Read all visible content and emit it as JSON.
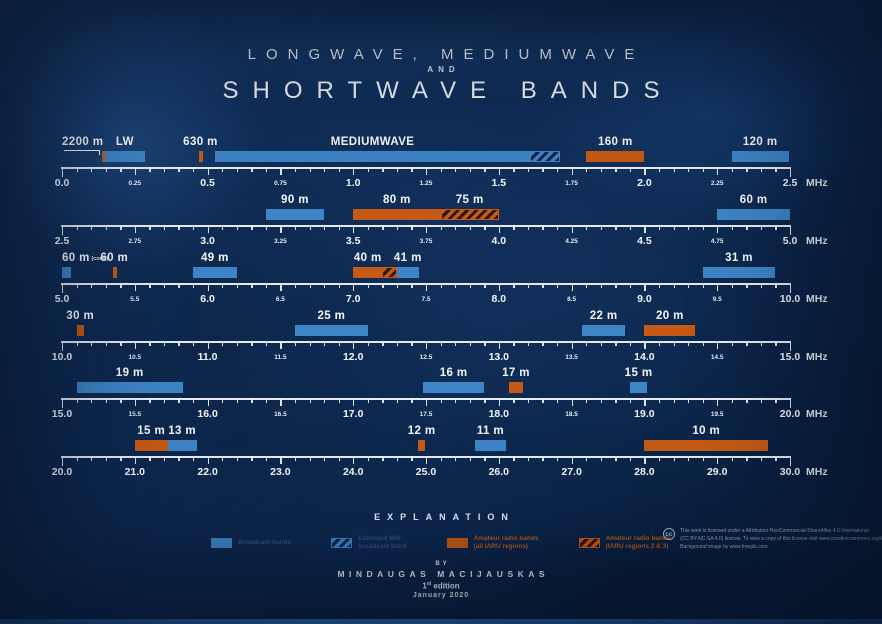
{
  "title": {
    "line1": "LONGWAVE, MEDIUMWAVE",
    "line2": "AND",
    "line3": "SHORTWAVE BANDS"
  },
  "unit_label": "MHz",
  "colors": {
    "broadcast_blue": "#3d85c6",
    "amateur_orange": "#c45a15",
    "background_navy": "#0d2950",
    "ruler_white": "#f0f6fc"
  },
  "chart_data": {
    "type": "bar",
    "subtype": "horizontal-frequency-band-ruler",
    "unit": "MHz",
    "rows": [
      {
        "range": [
          0,
          2.5
        ],
        "minor_step": 0.05,
        "big_ticks": [
          [
            0,
            "0.0"
          ],
          [
            0.5,
            "0.5"
          ],
          [
            1,
            "1.0"
          ],
          [
            1.5,
            "1.5"
          ],
          [
            2,
            "2.0"
          ],
          [
            2.5,
            "2.5"
          ]
        ],
        "small_ticks": [
          [
            0.25,
            "0.25"
          ],
          [
            0.75,
            "0.75"
          ],
          [
            1.25,
            "1.25"
          ],
          [
            1.75,
            "1.75"
          ],
          [
            2.25,
            "2.25"
          ]
        ],
        "bands": [
          {
            "label": "2200 m",
            "start": 0.1357,
            "end": 0.1378,
            "style": "orange",
            "label_mode": "leader"
          },
          {
            "label": "LW",
            "start": 0.1485,
            "end": 0.2835,
            "style": "blue"
          },
          {
            "label": "630 m",
            "start": 0.472,
            "end": 0.479,
            "style": "orange"
          },
          {
            "label": "MEDIUMWAVE",
            "start": 0.5265,
            "end": 1.6065,
            "style": "blue"
          },
          {
            "label": "",
            "start": 1.6065,
            "end": 1.71,
            "style": "blue_hatch"
          },
          {
            "label": "160 m",
            "start": 1.8,
            "end": 2.0,
            "style": "orange"
          },
          {
            "label": "120 m",
            "start": 2.3,
            "end": 2.495,
            "style": "blue"
          }
        ]
      },
      {
        "range": [
          2.5,
          5
        ],
        "minor_step": 0.05,
        "big_ticks": [
          [
            2.5,
            "2.5"
          ],
          [
            3,
            "3.0"
          ],
          [
            3.5,
            "3.5"
          ],
          [
            4,
            "4.0"
          ],
          [
            4.5,
            "4.5"
          ],
          [
            5,
            "5.0"
          ]
        ],
        "small_ticks": [
          [
            2.75,
            "2.75"
          ],
          [
            3.25,
            "3.25"
          ],
          [
            3.75,
            "3.75"
          ],
          [
            4.25,
            "4.25"
          ],
          [
            4.75,
            "4.75"
          ]
        ],
        "bands": [
          {
            "label": "90 m",
            "start": 3.2,
            "end": 3.4,
            "style": "blue"
          },
          {
            "label": "80 m",
            "start": 3.5,
            "end": 3.8,
            "style": "orange"
          },
          {
            "label": "75 m",
            "start": 3.8,
            "end": 4.0,
            "style": "orange_hatch"
          },
          {
            "label": "60 m",
            "start": 4.75,
            "end": 5.0,
            "style": "blue"
          }
        ]
      },
      {
        "range": [
          5,
          10
        ],
        "minor_step": 0.1,
        "big_ticks": [
          [
            5,
            "5.0"
          ],
          [
            6,
            "6.0"
          ],
          [
            7,
            "7.0"
          ],
          [
            8,
            "8.0"
          ],
          [
            9,
            "9.0"
          ],
          [
            10,
            "10.0"
          ]
        ],
        "small_ticks": [
          [
            5.5,
            "5.5"
          ],
          [
            6.5,
            "6.5"
          ],
          [
            7.5,
            "7.5"
          ],
          [
            8.5,
            "8.5"
          ],
          [
            9.5,
            "9.5"
          ]
        ],
        "bands": [
          {
            "label": "60 m",
            "sub": "(cont.)",
            "start": 5.0,
            "end": 5.06,
            "style": "blue",
            "label_mode": "left"
          },
          {
            "label": "60 m",
            "start": 5.3515,
            "end": 5.3665,
            "style": "orange"
          },
          {
            "label": "49 m",
            "start": 5.9,
            "end": 6.2,
            "style": "blue"
          },
          {
            "label": "40 m",
            "start": 7.0,
            "end": 7.2,
            "style": "orange"
          },
          {
            "label": "",
            "start": 7.2,
            "end": 7.3,
            "style": "orange_hatch"
          },
          {
            "label": "41 m",
            "start": 7.3,
            "end": 7.45,
            "style": "blue"
          },
          {
            "label": "31 m",
            "start": 9.4,
            "end": 9.9,
            "style": "blue"
          }
        ]
      },
      {
        "range": [
          10,
          15
        ],
        "minor_step": 0.1,
        "big_ticks": [
          [
            10,
            "10.0"
          ],
          [
            11,
            "11.0"
          ],
          [
            12,
            "12.0"
          ],
          [
            13,
            "13.0"
          ],
          [
            14,
            "14.0"
          ],
          [
            15,
            "15.0"
          ]
        ],
        "small_ticks": [
          [
            10.5,
            "10.5"
          ],
          [
            11.5,
            "11.5"
          ],
          [
            12.5,
            "12.5"
          ],
          [
            13.5,
            "13.5"
          ],
          [
            14.5,
            "14.5"
          ]
        ],
        "bands": [
          {
            "label": "30 m",
            "start": 10.1,
            "end": 10.15,
            "style": "orange"
          },
          {
            "label": "25 m",
            "start": 11.6,
            "end": 12.1,
            "style": "blue"
          },
          {
            "label": "22 m",
            "start": 13.57,
            "end": 13.87,
            "style": "blue"
          },
          {
            "label": "20 m",
            "start": 14.0,
            "end": 14.35,
            "style": "orange"
          }
        ]
      },
      {
        "range": [
          15,
          20
        ],
        "minor_step": 0.1,
        "big_ticks": [
          [
            15,
            "15.0"
          ],
          [
            16,
            "16.0"
          ],
          [
            17,
            "17.0"
          ],
          [
            18,
            "18.0"
          ],
          [
            19,
            "19.0"
          ],
          [
            20,
            "20.0"
          ]
        ],
        "small_ticks": [
          [
            15.5,
            "15.5"
          ],
          [
            16.5,
            "16.5"
          ],
          [
            17.5,
            "17.5"
          ],
          [
            18.5,
            "18.5"
          ],
          [
            19.5,
            "19.5"
          ]
        ],
        "bands": [
          {
            "label": "19 m",
            "start": 15.1,
            "end": 15.83,
            "style": "blue"
          },
          {
            "label": "16 m",
            "start": 17.48,
            "end": 17.9,
            "style": "blue"
          },
          {
            "label": "17 m",
            "start": 18.068,
            "end": 18.168,
            "style": "orange"
          },
          {
            "label": "15 m",
            "start": 18.9,
            "end": 19.02,
            "style": "blue"
          }
        ]
      },
      {
        "range": [
          20,
          30
        ],
        "minor_step": 0.2,
        "big_ticks": [
          [
            20,
            "20.0"
          ],
          [
            21,
            "21.0"
          ],
          [
            22,
            "22.0"
          ],
          [
            23,
            "23.0"
          ],
          [
            24,
            "24.0"
          ],
          [
            25,
            "25.0"
          ],
          [
            26,
            "26.0"
          ],
          [
            27,
            "27.0"
          ],
          [
            28,
            "28.0"
          ],
          [
            29,
            "29.0"
          ],
          [
            30,
            "30.0"
          ]
        ],
        "small_ticks": [],
        "bands": [
          {
            "label": "15 m",
            "start": 21.0,
            "end": 21.45,
            "style": "orange"
          },
          {
            "label": "13 m",
            "start": 21.45,
            "end": 21.85,
            "style": "blue"
          },
          {
            "label": "12 m",
            "start": 24.89,
            "end": 24.99,
            "style": "orange"
          },
          {
            "label": "11 m",
            "start": 25.67,
            "end": 26.1,
            "style": "blue"
          },
          {
            "label": "10 m",
            "start": 28.0,
            "end": 29.7,
            "style": "orange"
          }
        ]
      }
    ]
  },
  "legend": {
    "title": "EXPLANATION",
    "items": [
      {
        "swatch": "blue",
        "lines": [
          "Broadcast bands"
        ]
      },
      {
        "swatch": "blue_hatch",
        "lines": [
          "Extended MW",
          "broadcast band"
        ]
      },
      {
        "swatch": "orange",
        "lines": [
          "Amateur radio bands",
          "(all IARU regions)"
        ]
      },
      {
        "swatch": "orange_hatch",
        "lines": [
          "Amateur radio bands",
          "(IARU regions 2 & 3)"
        ]
      }
    ]
  },
  "credits": {
    "by": "BY",
    "name": "MINDAUGAS MACIJAUSKAS",
    "edition_num": "1",
    "edition_sup": "st",
    "edition_word": "edition",
    "date": "January 2020"
  },
  "license": {
    "icon_text": "cc",
    "lines": [
      "This work is licensed under a Attribution-NonCommercial-ShareAlike 4.0 International",
      "(CC BY-NC-SA 4.0) license. To view a copy of this license visit www.creativecommons.org/licenses",
      "Background image by www.freepik.com"
    ]
  }
}
